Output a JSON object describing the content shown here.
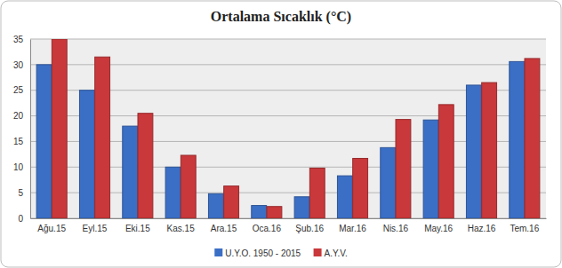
{
  "chart_data": {
    "type": "bar",
    "title": "Ortalama Sıcaklık (°C)",
    "categories": [
      "Ağu.15",
      "Eyl.15",
      "Eki.15",
      "Kas.15",
      "Ara.15",
      "Oca.16",
      "Şub.16",
      "Mar.16",
      "Nis.16",
      "May.16",
      "Haz.16",
      "Tem.16"
    ],
    "series": [
      {
        "name": "U.Y.O. 1950 - 2015",
        "color": "#3b6fc6",
        "values": [
          30,
          25,
          18,
          10,
          4.8,
          2.5,
          4.2,
          8.3,
          13.8,
          19.2,
          26,
          30.6
        ]
      },
      {
        "name": "A.Y.V.",
        "color": "#c9383a",
        "values": [
          35,
          31.5,
          20.5,
          12.3,
          6.3,
          2.3,
          9.8,
          11.7,
          19.3,
          22.2,
          26.5,
          31.2
        ]
      }
    ],
    "ylim": [
      0,
      35
    ],
    "yticks": [
      0,
      5,
      10,
      15,
      20,
      25,
      30,
      35
    ],
    "grid": true,
    "legend": "bottom"
  }
}
